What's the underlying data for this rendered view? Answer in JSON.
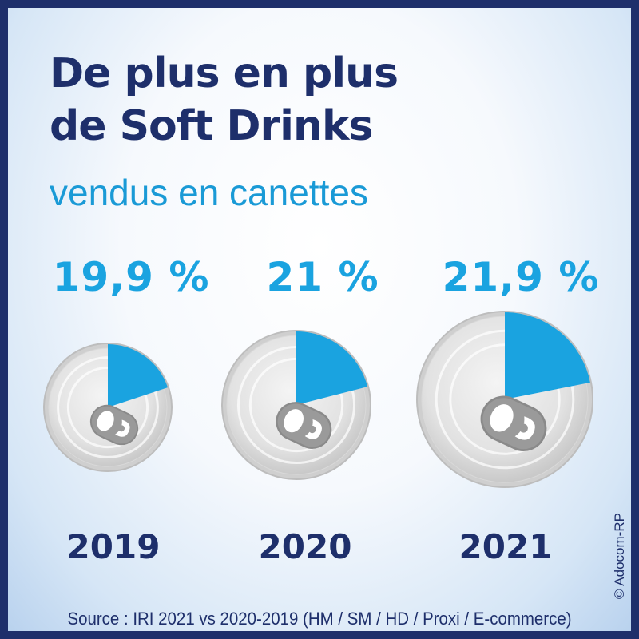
{
  "header": {
    "title_line1": "De plus en plus",
    "title_line2": "de Soft Drinks",
    "subtitle": "vendus en canettes"
  },
  "footer": {
    "source": "Source : IRI 2021 vs 2020-2019 (HM / SM / HD / Proxi / E-commerce)",
    "credit": "© Adocom-RP"
  },
  "colors": {
    "accent": "#1aa3e0",
    "navy": "#1e2f6b",
    "can": "#dcdcdc"
  },
  "chart_data": {
    "type": "pie",
    "categories": [
      "2019",
      "2020",
      "2021"
    ],
    "values": [
      19.9,
      21,
      21.9
    ],
    "unit": "%",
    "value_labels": [
      "19,9 %",
      "21 %",
      "21,9 %"
    ]
  }
}
